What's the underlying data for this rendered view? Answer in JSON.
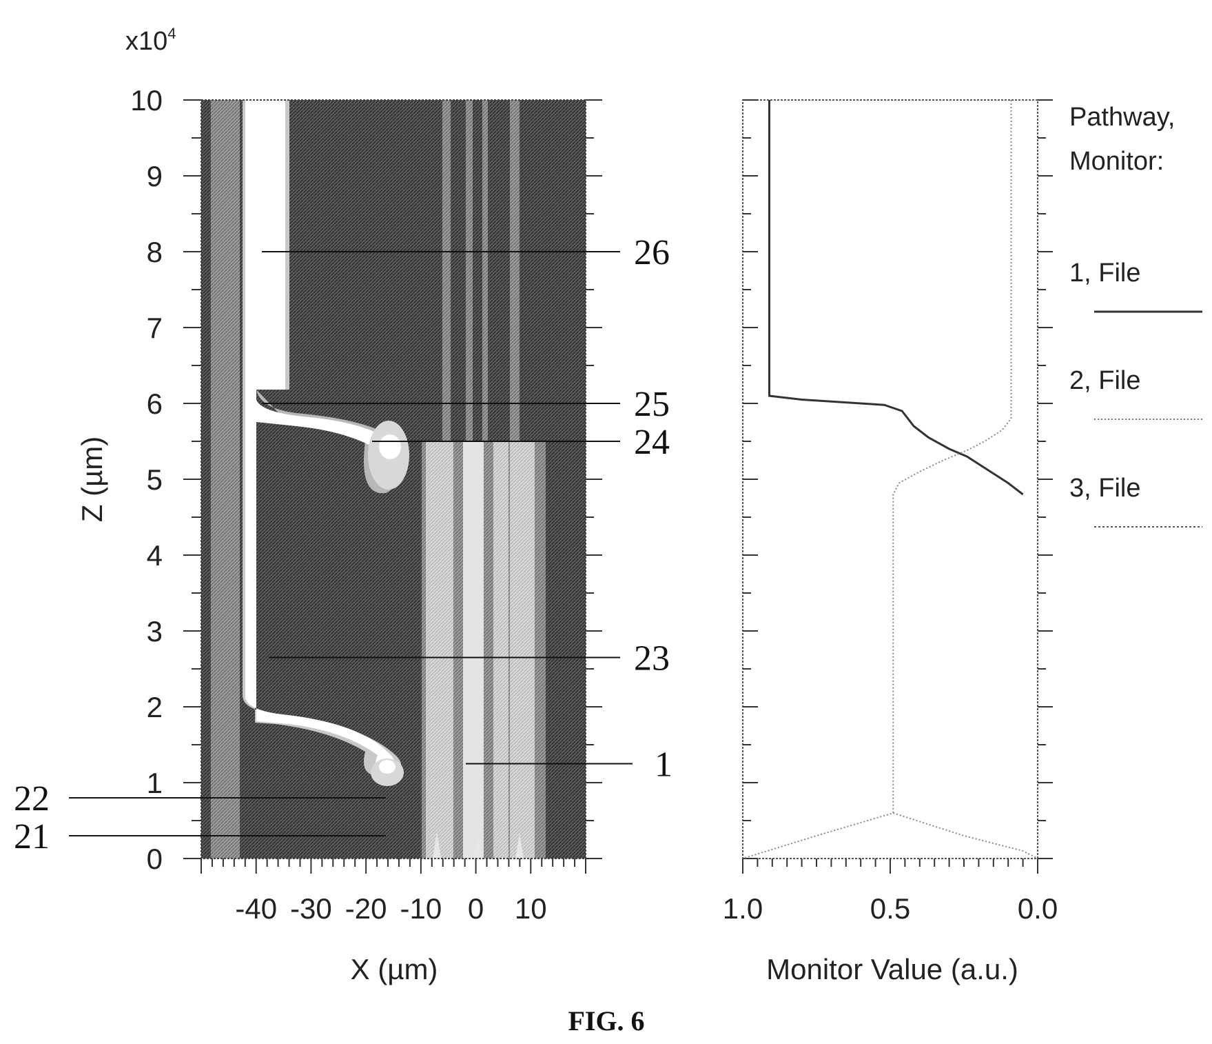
{
  "chart_data": [
    {
      "type": "heatmap",
      "ylabel": "Z (µm)",
      "xlabel": "X (µm)",
      "y_multiplier": "x10",
      "y_multiplier_exp": "4",
      "xlim": [
        -50,
        20
      ],
      "ylim": [
        0,
        100000
      ],
      "x_ticks": [
        "-40",
        "-30",
        "-20",
        "-10",
        "0",
        "10"
      ],
      "x_tick_values": [
        -40,
        -30,
        -20,
        -10,
        0,
        10
      ],
      "y_ticks": [
        "0",
        "1",
        "2",
        "3",
        "4",
        "5",
        "6",
        "7",
        "8",
        "9",
        "10"
      ],
      "y_tick_values": [
        0,
        10000,
        20000,
        30000,
        40000,
        50000,
        60000,
        70000,
        80000,
        90000,
        100000
      ],
      "reference_labels": [
        {
          "label": "26",
          "z": 80000
        },
        {
          "label": "25",
          "z": 60000
        },
        {
          "label": "24",
          "z": 55000
        },
        {
          "label": "23",
          "z": 26500
        },
        {
          "label": "1",
          "z": 12500
        },
        {
          "label": "22",
          "z": 8000
        },
        {
          "label": "21",
          "z": 3000
        }
      ],
      "colors": {
        "core": "#ffffff",
        "cladding": "#4a4a4a",
        "mid": "#8a8a8a",
        "light": "#c8c8c8"
      }
    },
    {
      "type": "line",
      "xlabel": "Monitor Value (a.u.)",
      "xlim": [
        1.0,
        0.0
      ],
      "ylim": [
        0,
        100000
      ],
      "x_ticks": [
        "1.0",
        "0.5",
        "0.0"
      ],
      "x_tick_values": [
        1.0,
        0.5,
        0.0
      ],
      "legend_title": [
        "Pathway,",
        "Monitor:"
      ],
      "legend_position": "right",
      "series": [
        {
          "name": "1, File",
          "style": "solid",
          "points": [
            [
              0.91,
              100000
            ],
            [
              0.91,
              61000
            ],
            [
              0.8,
              60500
            ],
            [
              0.6,
              60000
            ],
            [
              0.52,
              59800
            ],
            [
              0.46,
              59000
            ],
            [
              0.42,
              57000
            ],
            [
              0.37,
              55500
            ],
            [
              0.3,
              54000
            ],
            [
              0.24,
              53000
            ],
            [
              0.16,
              51000
            ],
            [
              0.1,
              49500
            ],
            [
              0.05,
              48000
            ]
          ]
        },
        {
          "name": "2, File",
          "style": "dotted",
          "points": [
            [
              0.09,
              100000
            ],
            [
              0.09,
              58000
            ],
            [
              0.12,
              56500
            ],
            [
              0.18,
              55000
            ],
            [
              0.24,
              53800
            ],
            [
              0.32,
              52500
            ],
            [
              0.4,
              51000
            ],
            [
              0.47,
              49500
            ],
            [
              0.49,
              48000
            ],
            [
              0.49,
              6000
            ],
            [
              0.75,
              3000
            ],
            [
              1.0,
              0
            ]
          ]
        },
        {
          "name": "3, File",
          "style": "dotted",
          "points": [
            [
              0.49,
              6000
            ],
            [
              0.25,
              3000
            ],
            [
              0.05,
              1000
            ],
            [
              0.0,
              0
            ]
          ]
        }
      ]
    }
  ],
  "figure_caption": "FIG. 6"
}
